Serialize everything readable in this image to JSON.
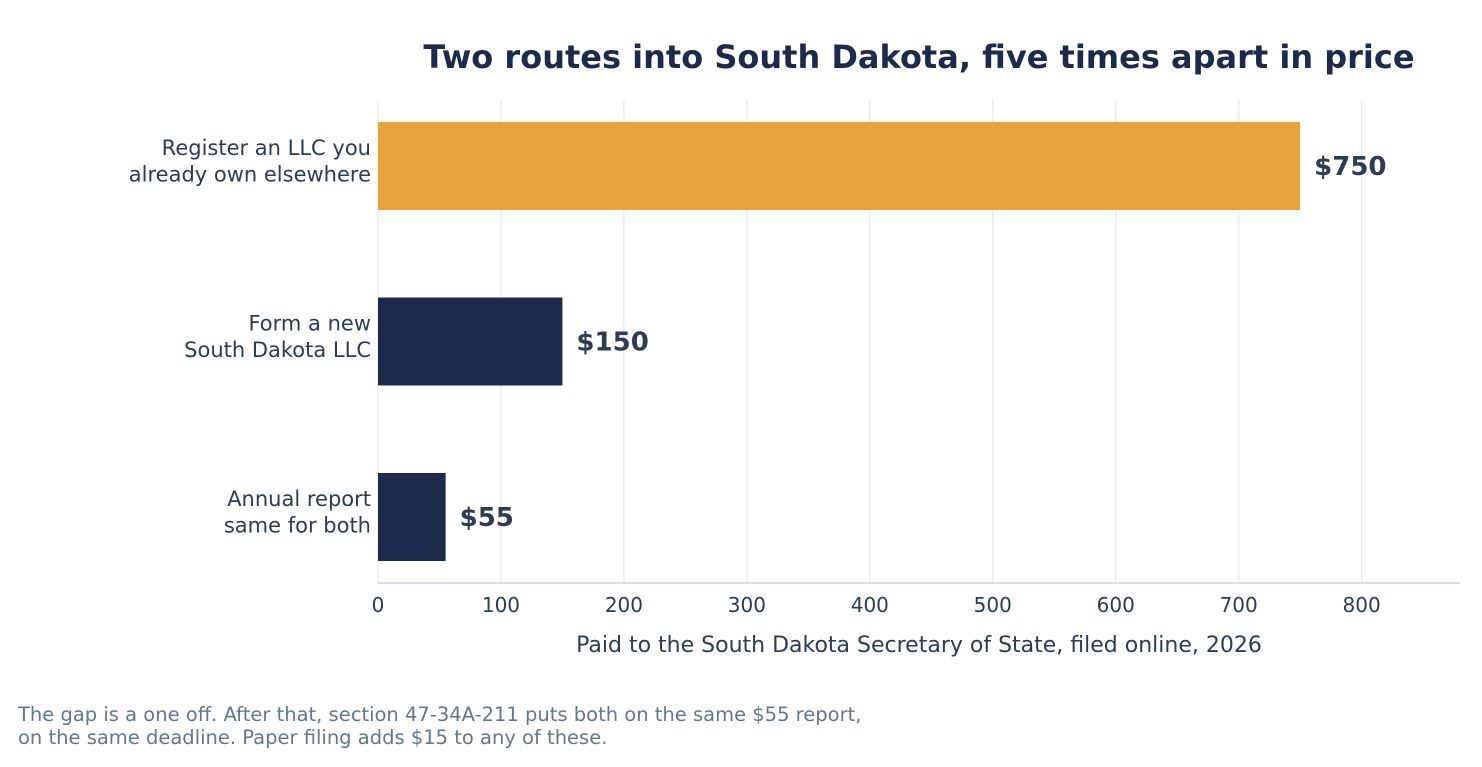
{
  "chart_data": {
    "type": "bar",
    "orientation": "horizontal",
    "title": "Two routes into South Dakota, five times apart in price",
    "xlabel": "Paid to the South Dakota Secretary of State, filed online, 2026",
    "ylabel": "",
    "xlim": [
      0,
      880
    ],
    "x_ticks": [
      0,
      100,
      200,
      300,
      400,
      500,
      600,
      700,
      800
    ],
    "grid": "vertical",
    "categories": [
      [
        "Register an LLC you",
        "already own elsewhere"
      ],
      [
        "Form a new",
        "South Dakota LLC"
      ],
      [
        "Annual report",
        "same for both"
      ]
    ],
    "values": [
      750,
      150,
      55
    ],
    "value_labels": [
      "$750",
      "$150",
      "$55"
    ],
    "bar_colors": [
      "#e8a33d",
      "#1c2b4b",
      "#1c2b4b"
    ]
  },
  "caption": {
    "lines": [
      "The gap is a one off. After that, section 47-34A-211 puts both on the same $55 report,",
      "on the same deadline. Paper filing adds $15 to any of these."
    ]
  },
  "colors": {
    "title": "#1c2b4b",
    "text": "#2d3b55",
    "grid": "#e6e8ef",
    "axis": "#cfd3e6",
    "caption": "#66768f"
  }
}
